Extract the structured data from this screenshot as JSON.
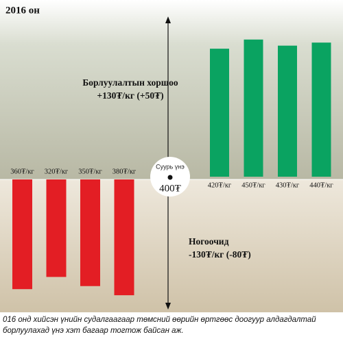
{
  "chart_data": {
    "type": "bar",
    "title": "2016 он",
    "base": {
      "label": "Суурь үнэ",
      "value_label": "400₮"
    },
    "series": [
      {
        "name": "Ногоочид",
        "annotation": "-130₮/кг (-80₮)",
        "color": "#e31e24",
        "direction": "down",
        "values": [
          360,
          320,
          350,
          380
        ],
        "value_labels": [
          "360₮/кг",
          "320₮/кг",
          "350₮/кг",
          "380₮/кг"
        ]
      },
      {
        "name": "Борлуулалтын хоршоо",
        "annotation": "+130₮/кг (+50₮)",
        "color": "#0aa361",
        "direction": "up",
        "values": [
          420,
          450,
          430,
          440
        ],
        "value_labels": [
          "420₮/кг",
          "450₮/кг",
          "430₮/кг",
          "440₮/кг"
        ]
      }
    ]
  },
  "caption": [
    "016 онд хийсэн үнийн судалгаагаар төмсний өөрийн өртгөөс доогуур алдагдалтай",
    "борлуулахад үнэ хэт багаар тогтож байсан аж."
  ]
}
